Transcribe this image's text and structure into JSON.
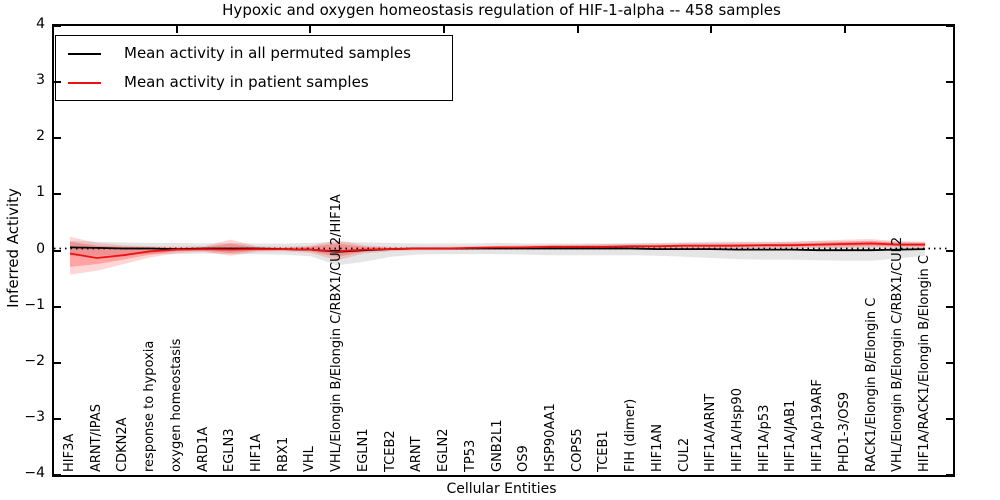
{
  "chart_data": {
    "type": "line",
    "title": "Hypoxic and oxygen homeostasis regulation of HIF-1-alpha -- 458 samples",
    "xlabel": "Cellular Entities",
    "ylabel": "Inferred Activity",
    "ylim": [
      -4,
      4
    ],
    "yticks": [
      4,
      3,
      2,
      1,
      0,
      -1,
      -2,
      -3,
      -4
    ],
    "ytick_labels": [
      "4",
      "3",
      "2",
      "1",
      "0",
      "−1",
      "−2",
      "−3",
      "−4"
    ],
    "top_tick_category_indices": [
      4,
      9,
      14,
      19,
      24,
      29
    ],
    "zero_reference_line": 0,
    "grid": false,
    "legend_position": "upper left",
    "categories": [
      "HIF3A",
      "ARNT/IPAS",
      "CDKN2A",
      "response to hypoxia",
      "oxygen homeostasis",
      "ARD1A",
      "EGLN3",
      "HIF1A",
      "RBX1",
      "VHL",
      "VHL/Elongin B/Elongin C/RBX1/CUL2/HIF1A",
      "EGLN1",
      "TCEB2",
      "ARNT",
      "EGLN2",
      "TP53",
      "GNB2L1",
      "OS9",
      "HSP90AA1",
      "COPS5",
      "TCEB1",
      "FIH (dimer)",
      "HIF1AN",
      "CUL2",
      "HIF1A/ARNT",
      "HIF1A/Hsp90",
      "HIF1A/p53",
      "HIF1A/JAB1",
      "HIF1A/p19ARF",
      "PHD1-3/OS9",
      "RACK1/Elongin B/Elongin C",
      "VHL/Elongin B/Elongin C/RBX1/CUL2",
      "HIF1A/RACK1/Elongin B/Elongin C"
    ],
    "series": [
      {
        "name": "Mean activity in all permuted samples",
        "color": "#000000",
        "values": [
          0.02,
          0.01,
          0.0,
          0.0,
          -0.01,
          0.0,
          0.0,
          0.0,
          -0.01,
          -0.02,
          -0.06,
          -0.03,
          -0.01,
          0.0,
          0.0,
          0.0,
          0.0,
          0.0,
          0.0,
          0.0,
          0.0,
          0.0,
          -0.01,
          -0.01,
          -0.01,
          -0.02,
          -0.02,
          -0.02,
          -0.03,
          -0.03,
          -0.03,
          -0.02,
          -0.01
        ]
      },
      {
        "name": "Mean activity in patient samples",
        "color": "#ee1111",
        "values": [
          -0.09,
          -0.17,
          -0.12,
          -0.05,
          -0.02,
          -0.01,
          -0.02,
          -0.01,
          -0.01,
          -0.02,
          -0.05,
          -0.02,
          -0.01,
          0.0,
          0.0,
          0.01,
          0.02,
          0.02,
          0.03,
          0.03,
          0.03,
          0.04,
          0.04,
          0.05,
          0.05,
          0.05,
          0.06,
          0.06,
          0.07,
          0.08,
          0.09,
          0.07,
          0.07
        ]
      }
    ],
    "bands": [
      {
        "name": "permuted-samples-range",
        "color": "rgba(0,0,0,0.10)",
        "upper": [
          0.14,
          0.12,
          0.11,
          0.1,
          0.1,
          0.09,
          0.1,
          0.09,
          0.09,
          0.1,
          0.12,
          0.11,
          0.1,
          0.09,
          0.09,
          0.09,
          0.1,
          0.09,
          0.09,
          0.09,
          0.09,
          0.1,
          0.1,
          0.11,
          0.12,
          0.12,
          0.12,
          0.12,
          0.13,
          0.13,
          0.14,
          0.12,
          0.11
        ],
        "lower": [
          -0.14,
          -0.13,
          -0.11,
          -0.1,
          -0.1,
          -0.09,
          -0.1,
          -0.1,
          -0.11,
          -0.14,
          -0.3,
          -0.24,
          -0.15,
          -0.11,
          -0.1,
          -0.1,
          -0.1,
          -0.11,
          -0.12,
          -0.12,
          -0.12,
          -0.12,
          -0.13,
          -0.15,
          -0.17,
          -0.19,
          -0.2,
          -0.2,
          -0.21,
          -0.22,
          -0.22,
          -0.18,
          -0.13
        ]
      },
      {
        "name": "patient-samples-range-outer",
        "color": "rgba(255,0,0,0.16)",
        "upper": [
          0.21,
          0.1,
          0.06,
          0.04,
          0.03,
          0.04,
          0.16,
          0.04,
          0.03,
          0.05,
          0.15,
          0.06,
          0.03,
          0.03,
          0.03,
          0.04,
          0.05,
          0.06,
          0.07,
          0.07,
          0.08,
          0.08,
          0.09,
          0.1,
          0.1,
          0.11,
          0.11,
          0.12,
          0.14,
          0.16,
          0.17,
          0.13,
          0.12
        ],
        "lower": [
          -0.47,
          -0.4,
          -0.28,
          -0.16,
          -0.08,
          -0.06,
          -0.13,
          -0.06,
          -0.05,
          -0.08,
          -0.21,
          -0.09,
          -0.05,
          -0.03,
          -0.03,
          -0.02,
          -0.01,
          -0.01,
          -0.01,
          0.0,
          0.0,
          0.0,
          0.0,
          0.0,
          0.0,
          0.0,
          0.01,
          0.01,
          0.01,
          0.01,
          0.02,
          0.02,
          0.01
        ]
      },
      {
        "name": "patient-samples-range-inner",
        "color": "rgba(255,0,0,0.24)",
        "upper": [
          0.12,
          0.05,
          0.03,
          0.02,
          0.01,
          0.02,
          0.09,
          0.02,
          0.01,
          0.03,
          0.09,
          0.03,
          0.01,
          0.01,
          0.01,
          0.02,
          0.03,
          0.04,
          0.04,
          0.05,
          0.05,
          0.06,
          0.06,
          0.07,
          0.07,
          0.08,
          0.08,
          0.09,
          0.1,
          0.12,
          0.13,
          0.1,
          0.1
        ],
        "lower": [
          -0.33,
          -0.28,
          -0.2,
          -0.11,
          -0.05,
          -0.04,
          -0.08,
          -0.04,
          -0.03,
          -0.05,
          -0.15,
          -0.06,
          -0.03,
          -0.02,
          -0.02,
          -0.01,
          0.0,
          0.0,
          0.01,
          0.01,
          0.01,
          0.02,
          0.02,
          0.02,
          0.02,
          0.03,
          0.03,
          0.03,
          0.04,
          0.04,
          0.05,
          0.04,
          0.04
        ]
      }
    ]
  }
}
